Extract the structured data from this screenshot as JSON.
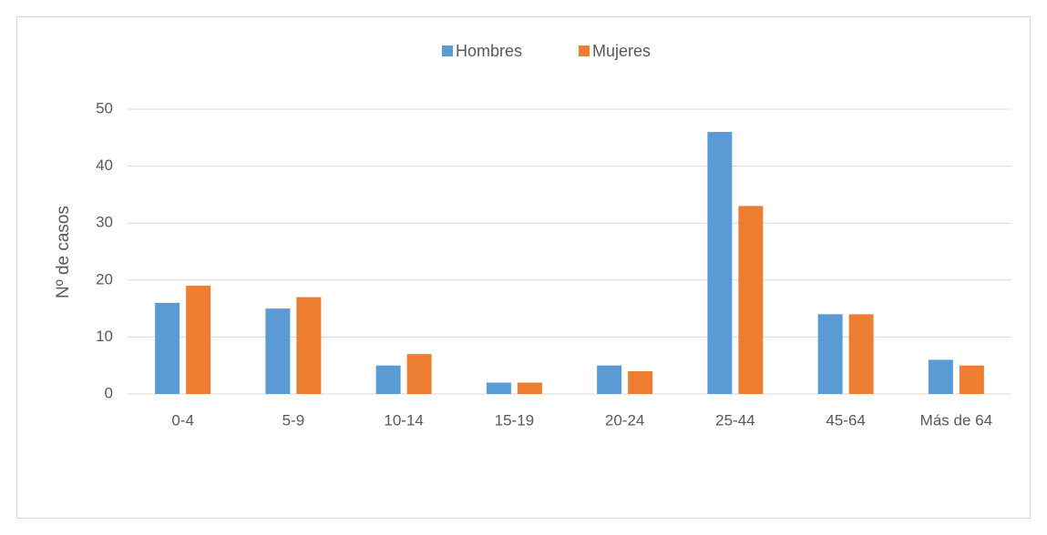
{
  "chart_data": {
    "type": "bar",
    "y_label": "Nº de casos",
    "categories": [
      "0-4",
      "5-9",
      "10-14",
      "15-19",
      "20-24",
      "25-44",
      "45-64",
      "Más de 64"
    ],
    "series": [
      {
        "name": "Hombres",
        "color": "#5b9bd5",
        "values": [
          16,
          15,
          5,
          2,
          5,
          46,
          14,
          6
        ]
      },
      {
        "name": "Mujeres",
        "color": "#ed7d31",
        "values": [
          19,
          17,
          7,
          2,
          4,
          33,
          14,
          5
        ]
      }
    ],
    "ylim": [
      0,
      50
    ],
    "yticks": [
      0,
      10,
      20,
      30,
      40,
      50
    ],
    "grid": true,
    "legend": "top"
  }
}
